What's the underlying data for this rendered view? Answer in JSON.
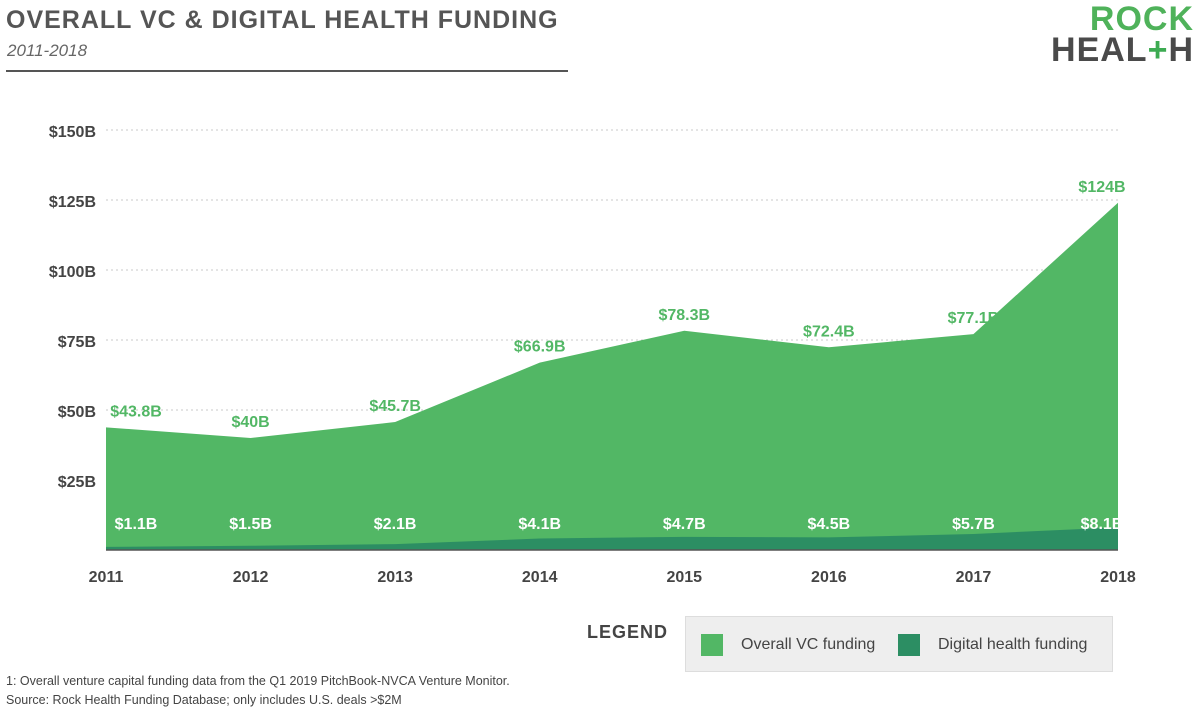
{
  "header": {
    "title": "OVERALL VC & DIGITAL HEALTH FUNDING",
    "subtitle": "2011-2018"
  },
  "logo": {
    "line1": "ROCK",
    "line2_a": "HEAL",
    "line2_plus": "+",
    "line2_b": "H"
  },
  "colors": {
    "overall": "#52b765",
    "digital": "#2c8e63",
    "text_green": "#52b765",
    "axis_text": "#444444"
  },
  "chart_data": {
    "type": "area",
    "categories": [
      "2011",
      "2012",
      "2013",
      "2014",
      "2015",
      "2016",
      "2017",
      "2018"
    ],
    "series": [
      {
        "name": "Overall VC funding",
        "values": [
          43.8,
          40,
          45.7,
          66.9,
          78.3,
          72.4,
          77.1,
          124
        ],
        "labels": [
          "$43.8B",
          "$40B",
          "$45.7B",
          "$66.9B",
          "$78.3B",
          "$72.4B",
          "$77.1B",
          "$124B"
        ]
      },
      {
        "name": "Digital health funding",
        "values": [
          1.1,
          1.5,
          2.1,
          4.1,
          4.7,
          4.5,
          5.7,
          8.1
        ],
        "labels": [
          "$1.1B",
          "$1.5B",
          "$2.1B",
          "$4.1B",
          "$4.7B",
          "$4.5B",
          "$5.7B",
          "$8.1B"
        ]
      }
    ],
    "yticks": [
      25,
      50,
      75,
      100,
      125,
      150
    ],
    "ytick_labels": [
      "$25B",
      "$50B",
      "$75B",
      "$100B",
      "$125B",
      "$150B"
    ],
    "ylim": [
      0,
      150
    ],
    "grid": true,
    "legend_placement": "bottom-right"
  },
  "legend": {
    "title": "LEGEND",
    "items": [
      "Overall VC funding",
      "Digital health funding"
    ]
  },
  "footnotes": [
    "1: Overall venture capital funding data from the Q1 2019 PitchBook-NVCA Venture Monitor.",
    "Source: Rock Health Funding Database; only includes U.S. deals >$2M"
  ]
}
